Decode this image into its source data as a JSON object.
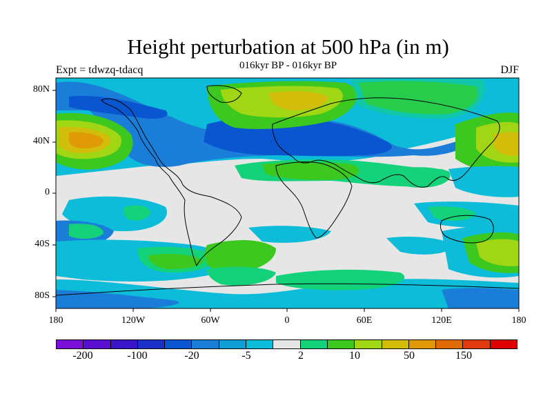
{
  "title": "Height perturbation at 500 hPa (in m)",
  "subtitle": "016kyr BP - 016kyr BP",
  "experiment": "Expt = tdwzq-tdacq",
  "season": "DJF",
  "lat_ticks": [
    "80N",
    "40N",
    "0",
    "40S",
    "80S"
  ],
  "lon_ticks": [
    "180",
    "120W",
    "60W",
    "0",
    "60E",
    "120E",
    "180"
  ],
  "colorbar": {
    "colors": [
      "#7a10d8",
      "#5a0fd0",
      "#3b16c8",
      "#1c30c8",
      "#0a55d0",
      "#1a7ed9",
      "#0f9fd6",
      "#0cbcd8",
      "#e6e6e6",
      "#14d27a",
      "#3cc81e",
      "#a0d614",
      "#d2be0a",
      "#e09a08",
      "#e06a06",
      "#e03a0e",
      "#e00000"
    ],
    "labels": [
      "-200",
      "-100",
      "-20",
      "-5",
      "2",
      "10",
      "50",
      "150"
    ]
  }
}
